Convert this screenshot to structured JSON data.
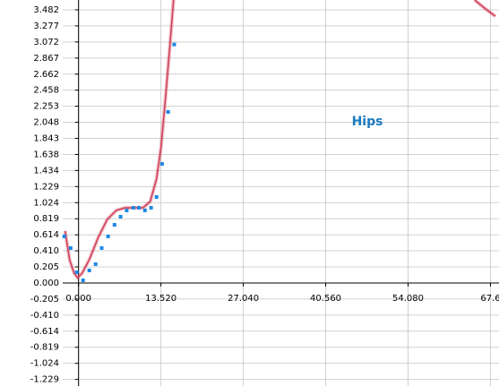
{
  "chart_data": {
    "type": "scatter",
    "annotation": "Hips",
    "x": [
      -2.35,
      -1.3,
      -0.3,
      0.74,
      1.76,
      2.8,
      3.8,
      4.85,
      5.9,
      6.9,
      7.9,
      9.0,
      9.9,
      10.9,
      11.9,
      12.8,
      13.7,
      14.7,
      15.7
    ],
    "values": [
      0.594,
      0.445,
      0.137,
      0.034,
      0.16,
      0.24,
      0.445,
      0.594,
      0.742,
      0.845,
      0.925,
      0.959,
      0.959,
      0.925,
      0.959,
      1.096,
      1.518,
      2.18,
      3.04
    ],
    "color": "#1e88e5",
    "series": [
      {
        "color": "#d0405a",
        "x": [
          -2.21,
          -1.47,
          -0.74,
          -0.15,
          0.59,
          1.76,
          3.24,
          4.71,
          6.18,
          7.65,
          9.12,
          10.59,
          11.76,
          12.79,
          13.53,
          14.26,
          15.0,
          15.59,
          null,
          65.0,
          66.8,
          68.4
        ],
        "values": [
          0.662,
          0.297,
          0.126,
          0.068,
          0.126,
          0.297,
          0.582,
          0.811,
          0.925,
          0.959,
          0.959,
          0.959,
          1.039,
          1.324,
          1.724,
          2.352,
          3.037,
          3.607,
          null,
          3.607,
          3.493,
          3.4
        ]
      }
    ],
    "xlim": [
      -2.6,
      69.0
    ],
    "ylim": [
      -1.313,
      3.607
    ],
    "xticks": [
      {
        "value": 0,
        "label": "0.000"
      },
      {
        "value": 13.52,
        "label": "13.520"
      },
      {
        "value": 27.04,
        "label": "27.040"
      },
      {
        "value": 40.56,
        "label": "40.560"
      },
      {
        "value": 54.08,
        "label": "54.080"
      },
      67.6
    ],
    "yticks": [
      3.482,
      3.277,
      3.072,
      2.867,
      2.662,
      2.458,
      2.253,
      2.048,
      1.843,
      1.638,
      1.434,
      1.229,
      1.024,
      0.819,
      0.614,
      {
        "value": 0.41,
        "label": "0.410"
      },
      0.205,
      {
        "value": 0,
        "label": "0.000"
      },
      -0.205,
      {
        "value": -0.41,
        "label": "-0.410"
      },
      -0.614,
      -0.819,
      -1.024,
      -1.229
    ],
    "grid": true
  }
}
